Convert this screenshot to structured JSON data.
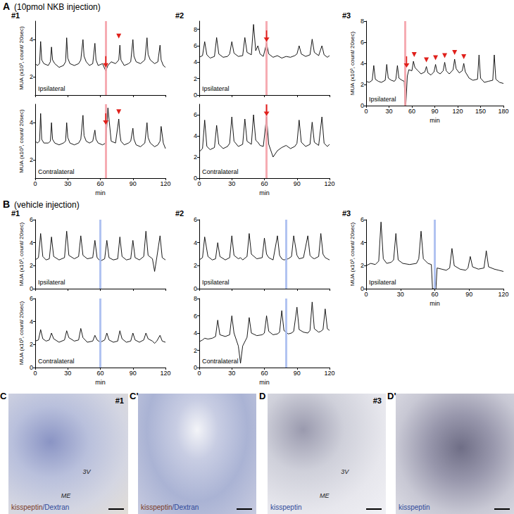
{
  "panels": [
    {
      "letter": "A",
      "caption": "(10pmol NKB injection)",
      "columns": [
        "#1",
        "#2",
        "#3"
      ]
    },
    {
      "letter": "B",
      "caption": "(vehicle injection)",
      "columns": [
        "#1",
        "#2",
        "#3"
      ]
    }
  ],
  "chart_data": [
    {
      "type": "line",
      "annotation": "Ipsilateral",
      "color": "#000000",
      "x": [
        0,
        2,
        4,
        5,
        6,
        8,
        12,
        14,
        15,
        16,
        18,
        22,
        26,
        28,
        29,
        30,
        32,
        36,
        40,
        42,
        44,
        45,
        47,
        50,
        53,
        55,
        56,
        58,
        62,
        65,
        67,
        70,
        74,
        77,
        78,
        79,
        82,
        86,
        88,
        90,
        91,
        93,
        97,
        101,
        103,
        104,
        106,
        110,
        113,
        115,
        116,
        118,
        120
      ],
      "values": [
        2.7,
        2.6,
        2.7,
        3.9,
        2.9,
        2.7,
        2.6,
        2.8,
        3.6,
        2.9,
        2.7,
        2.5,
        2.6,
        2.8,
        4.1,
        3.0,
        2.7,
        2.6,
        2.7,
        2.9,
        4.0,
        3.1,
        2.8,
        2.6,
        2.7,
        3.8,
        2.9,
        2.6,
        2.7,
        2.3,
        2.6,
        2.8,
        2.7,
        2.9,
        3.7,
        2.9,
        2.6,
        2.7,
        2.8,
        4.0,
        3.1,
        2.8,
        2.7,
        2.9,
        4.1,
        3.2,
        2.9,
        2.7,
        2.8,
        3.7,
        2.9,
        2.6,
        2.5
      ],
      "xlim": [
        0,
        120
      ],
      "xticks": [
        0,
        30,
        60,
        90,
        120
      ],
      "ylim": [
        1,
        5
      ],
      "yticks": [
        2,
        4
      ],
      "ylabel": "MUA (x10³, count/ 20sec)",
      "tick_labels": "y",
      "injection": {
        "x": 65,
        "color": "#f5a3ab"
      },
      "arrow": [
        65,
        2.5
      ],
      "arrowheads": [
        [
          77,
          4.0
        ]
      ]
    },
    {
      "type": "line",
      "annotation": "Contralateral",
      "color": "#000000",
      "x": [
        0,
        2,
        4,
        5,
        6,
        8,
        12,
        14,
        15,
        16,
        18,
        22,
        26,
        28,
        29,
        30,
        32,
        36,
        40,
        42,
        44,
        45,
        47,
        50,
        53,
        55,
        56,
        58,
        62,
        65,
        67,
        70,
        74,
        77,
        78,
        79,
        82,
        86,
        88,
        90,
        91,
        93,
        97,
        101,
        103,
        104,
        106,
        110,
        113,
        115,
        116,
        118,
        120
      ],
      "values": [
        3.0,
        2.9,
        3.0,
        4.5,
        3.1,
        2.9,
        2.9,
        3.0,
        4.0,
        3.1,
        2.9,
        2.8,
        2.9,
        3.0,
        4.0,
        3.2,
        2.9,
        2.8,
        2.9,
        3.1,
        4.4,
        3.3,
        3.0,
        2.9,
        3.0,
        3.6,
        3.1,
        2.9,
        2.8,
        2.9,
        4.8,
        3.0,
        2.9,
        4.2,
        3.4,
        3.0,
        2.8,
        2.9,
        3.0,
        3.7,
        3.1,
        2.8,
        2.7,
        2.9,
        4.0,
        3.2,
        2.9,
        2.7,
        2.8,
        3.0,
        3.8,
        2.9,
        2.6
      ],
      "xlim": [
        0,
        120
      ],
      "xticks": [
        0,
        30,
        60,
        90,
        120
      ],
      "ylim": [
        1,
        5
      ],
      "yticks": [
        2,
        4
      ],
      "xlabel": "min",
      "ylabel": "MUA (x10³, count/ 20sec)",
      "injection": {
        "x": 65,
        "color": "#f5a3ab"
      },
      "arrow": [
        65,
        3.9
      ],
      "arrowheads": [
        [
          77,
          4.4
        ]
      ]
    },
    {
      "type": "line",
      "annotation": "Ipsilateral",
      "color": "#000000",
      "x": [
        0,
        3,
        5,
        7,
        10,
        14,
        16,
        18,
        22,
        26,
        28,
        30,
        32,
        36,
        40,
        42,
        44,
        48,
        50,
        52,
        54,
        56,
        59,
        62,
        64,
        68,
        72,
        76,
        80,
        84,
        88,
        90,
        92,
        94,
        98,
        102,
        104,
        106,
        110,
        113,
        115,
        118,
        120
      ],
      "values": [
        4.6,
        4.8,
        6.5,
        4.9,
        4.5,
        4.7,
        7.0,
        5.0,
        4.6,
        4.7,
        5.0,
        6.5,
        5.1,
        4.7,
        4.8,
        7.0,
        5.2,
        4.9,
        8.6,
        5.4,
        6.0,
        5.0,
        4.7,
        6.3,
        5.0,
        4.6,
        4.8,
        4.5,
        4.7,
        4.6,
        4.8,
        5.0,
        6.0,
        5.0,
        4.7,
        4.9,
        6.8,
        5.2,
        4.8,
        6.0,
        4.9,
        4.6,
        4.8
      ],
      "xlim": [
        0,
        120
      ],
      "xticks": [
        0,
        30,
        60,
        90,
        120
      ],
      "ylim": [
        0,
        9
      ],
      "yticks": [
        0,
        2,
        4,
        6,
        8
      ],
      "tick_labels": "y",
      "injection": {
        "x": 62,
        "color": "#f5a3ab"
      },
      "arrow": [
        62,
        6.5
      ]
    },
    {
      "type": "line",
      "annotation": "Contralateral",
      "color": "#000000",
      "x": [
        0,
        3,
        5,
        7,
        10,
        14,
        16,
        18,
        22,
        26,
        28,
        30,
        32,
        36,
        40,
        42,
        44,
        48,
        50,
        52,
        54,
        56,
        59,
        62,
        64,
        68,
        72,
        76,
        80,
        84,
        88,
        90,
        92,
        94,
        98,
        102,
        104,
        106,
        110,
        113,
        115,
        118,
        120
      ],
      "values": [
        2.5,
        2.8,
        5.5,
        3.0,
        2.7,
        2.9,
        5.0,
        3.2,
        2.8,
        3.0,
        3.3,
        5.8,
        3.5,
        3.0,
        3.2,
        5.6,
        3.5,
        3.2,
        6.0,
        3.6,
        3.4,
        3.1,
        3.0,
        5.8,
        3.2,
        2.0,
        2.6,
        2.9,
        3.1,
        2.8,
        3.0,
        3.3,
        5.5,
        3.4,
        3.0,
        3.2,
        5.3,
        3.4,
        3.1,
        5.8,
        3.3,
        3.0,
        3.2
      ],
      "xlim": [
        0,
        120
      ],
      "xticks": [
        0,
        30,
        60,
        90,
        120
      ],
      "ylim": [
        0,
        7
      ],
      "yticks": [
        0,
        2,
        4,
        6
      ],
      "xlabel": "min",
      "injection": {
        "x": 62,
        "color": "#f5a3ab"
      },
      "arrow": [
        62,
        5.9
      ]
    },
    {
      "type": "line",
      "annotation": "Ipsilateral",
      "color": "#000000",
      "x": [
        0,
        4,
        8,
        10,
        12,
        16,
        20,
        25,
        27,
        29,
        33,
        37,
        39,
        41,
        43,
        47,
        50,
        51,
        52,
        54,
        56,
        60,
        62,
        64,
        68,
        72,
        77,
        79,
        81,
        85,
        89,
        91,
        93,
        97,
        101,
        103,
        105,
        109,
        114,
        116,
        118,
        122,
        126,
        128,
        130,
        135,
        140,
        146,
        148,
        150,
        155,
        160,
        166,
        168,
        170,
        175,
        180
      ],
      "values": [
        2.3,
        2.2,
        2.4,
        3.8,
        2.5,
        2.3,
        2.2,
        2.4,
        3.9,
        2.6,
        2.4,
        2.3,
        2.5,
        3.8,
        2.6,
        2.4,
        2.3,
        0,
        0,
        2.8,
        3.4,
        3.3,
        4.2,
        3.6,
        3.3,
        3.0,
        3.2,
        3.7,
        3.1,
        2.9,
        3.2,
        3.9,
        3.2,
        3.0,
        3.3,
        4.1,
        3.3,
        3.0,
        3.4,
        4.4,
        3.5,
        3.1,
        3.3,
        4.0,
        3.2,
        2.6,
        2.4,
        2.5,
        4.8,
        2.6,
        2.2,
        2.3,
        2.4,
        4.8,
        2.5,
        2.2,
        2.1
      ],
      "xlim": [
        0,
        180
      ],
      "xticks": [
        0,
        30,
        60,
        90,
        120,
        150,
        180
      ],
      "ylim": [
        0,
        8
      ],
      "yticks": [
        0,
        2,
        4,
        6,
        8
      ],
      "xlabel": "min",
      "ylabel": "MUA (x10³, count/ 20sec)",
      "injection": {
        "x": 51,
        "color": "#f5a3ab"
      },
      "arrow": [
        53,
        3.6
      ],
      "arrowheads": [
        [
          63,
          4.5
        ],
        [
          79,
          4.0
        ],
        [
          91,
          4.2
        ],
        [
          103,
          4.4
        ],
        [
          116,
          4.7
        ],
        [
          128,
          4.3
        ]
      ]
    },
    {
      "type": "line",
      "annotation": "Ipsilateral",
      "color": "#000000",
      "x": [
        0,
        3,
        5,
        7,
        10,
        13,
        15,
        17,
        22,
        27,
        29,
        31,
        36,
        40,
        42,
        44,
        48,
        53,
        55,
        57,
        60,
        64,
        66,
        68,
        72,
        76,
        78,
        80,
        84,
        88,
        90,
        92,
        96,
        100,
        102,
        104,
        108,
        110,
        112,
        115,
        117,
        120
      ],
      "values": [
        2.5,
        2.7,
        4.8,
        2.8,
        2.5,
        2.6,
        4.5,
        2.8,
        2.5,
        2.7,
        5.0,
        2.9,
        2.6,
        2.8,
        4.6,
        2.9,
        2.6,
        2.7,
        4.2,
        2.7,
        2.4,
        2.6,
        4.2,
        2.7,
        2.5,
        2.6,
        4.5,
        2.8,
        2.5,
        2.6,
        4.2,
        2.7,
        2.5,
        2.8,
        5.0,
        2.9,
        2.6,
        1.5,
        2.7,
        4.6,
        2.7,
        2.5
      ],
      "xlim": [
        0,
        120
      ],
      "xticks": [
        0,
        30,
        60,
        90,
        120
      ],
      "ylim": [
        0,
        6
      ],
      "yticks": [
        0,
        2,
        4,
        6
      ],
      "ylabel": "MUA (x10³, count/ 20sec)",
      "tick_labels": "y",
      "injection": {
        "x": 60,
        "color": "#a9bdf0"
      }
    },
    {
      "type": "line",
      "annotation": "Contralateral",
      "color": "#000000",
      "x": [
        0,
        3,
        5,
        7,
        10,
        13,
        15,
        17,
        22,
        27,
        29,
        31,
        36,
        40,
        42,
        44,
        48,
        53,
        55,
        57,
        60,
        64,
        66,
        68,
        72,
        76,
        78,
        80,
        84,
        88,
        90,
        92,
        96,
        100,
        102,
        104,
        108,
        110,
        112,
        115,
        117,
        120
      ],
      "values": [
        2.3,
        2.4,
        3.3,
        2.5,
        2.3,
        2.4,
        3.0,
        2.5,
        2.2,
        2.4,
        3.2,
        2.6,
        2.3,
        2.4,
        3.4,
        2.6,
        2.2,
        2.3,
        2.8,
        2.4,
        2.2,
        2.4,
        3.0,
        2.4,
        2.2,
        2.3,
        3.2,
        2.5,
        2.2,
        2.3,
        3.0,
        2.4,
        2.2,
        2.4,
        3.0,
        2.5,
        2.3,
        2.1,
        2.3,
        2.8,
        2.3,
        2.2
      ],
      "xlim": [
        0,
        120
      ],
      "xticks": [
        0,
        30,
        60,
        90,
        120
      ],
      "ylim": [
        0,
        6
      ],
      "yticks": [
        0,
        2,
        4,
        6
      ],
      "xlabel": "min",
      "ylabel": "MUA (x10³, count/ 20sec)",
      "injection": {
        "x": 60,
        "color": "#a9bdf0"
      }
    },
    {
      "type": "line",
      "annotation": "Ipsilateral",
      "color": "#000000",
      "x": [
        0,
        3,
        5,
        8,
        12,
        15,
        17,
        19,
        24,
        28,
        30,
        32,
        36,
        38,
        40,
        44,
        46,
        48,
        53,
        58,
        60,
        62,
        64,
        68,
        72,
        74,
        76,
        78,
        82,
        85,
        87,
        90,
        92,
        96,
        100,
        102,
        104,
        106,
        110,
        112,
        114,
        116,
        118,
        120
      ],
      "values": [
        2.5,
        2.7,
        4.5,
        2.8,
        2.5,
        2.6,
        4.0,
        2.8,
        2.5,
        2.7,
        4.6,
        2.9,
        2.6,
        2.7,
        2.5,
        2.8,
        4.8,
        3.0,
        2.6,
        2.7,
        4.4,
        3.0,
        2.7,
        2.5,
        4.6,
        2.9,
        2.6,
        2.5,
        2.6,
        2.8,
        4.6,
        2.9,
        2.6,
        2.7,
        4.6,
        2.9,
        2.7,
        2.6,
        2.8,
        4.8,
        3.0,
        2.7,
        2.6,
        2.5
      ],
      "xlim": [
        0,
        120
      ],
      "xticks": [
        0,
        30,
        60,
        90,
        120
      ],
      "ylim": [
        0,
        6
      ],
      "yticks": [
        0,
        2,
        4,
        6
      ],
      "tick_labels": "y",
      "injection": {
        "x": 80,
        "color": "#a9bdf0"
      }
    },
    {
      "type": "line",
      "annotation": "Contralateral",
      "color": "#000000",
      "x": [
        0,
        3,
        5,
        8,
        12,
        15,
        17,
        19,
        24,
        28,
        30,
        32,
        36,
        38,
        40,
        44,
        46,
        48,
        53,
        58,
        60,
        62,
        64,
        68,
        72,
        74,
        76,
        78,
        82,
        85,
        87,
        90,
        92,
        96,
        100,
        102,
        104,
        106,
        110,
        112,
        114,
        116,
        118,
        120
      ],
      "values": [
        3.0,
        3.2,
        3.4,
        3.3,
        3.4,
        3.6,
        5.5,
        3.8,
        3.6,
        3.8,
        6.0,
        4.0,
        2.5,
        0.5,
        2.5,
        3.5,
        5.8,
        4.0,
        3.7,
        3.8,
        4.0,
        6.0,
        4.2,
        3.8,
        3.9,
        4.1,
        6.6,
        4.3,
        3.9,
        4.0,
        4.2,
        7.0,
        4.4,
        4.1,
        4.0,
        4.3,
        7.6,
        4.5,
        4.1,
        4.2,
        4.4,
        6.8,
        4.5,
        4.3
      ],
      "xlim": [
        0,
        120
      ],
      "xticks": [
        0,
        30,
        60,
        90,
        120
      ],
      "ylim": [
        0,
        8
      ],
      "yticks": [
        0,
        2,
        4,
        6,
        8
      ],
      "xlabel": "min",
      "injection": {
        "x": 80,
        "color": "#a9bdf0"
      }
    },
    {
      "type": "line",
      "annotation": "Ipsilateral",
      "color": "#000000",
      "x": [
        0,
        4,
        8,
        11,
        13,
        15,
        18,
        22,
        24,
        26,
        28,
        32,
        38,
        44,
        46,
        48,
        50,
        54,
        57,
        58,
        61,
        62,
        66,
        70,
        73,
        75,
        77,
        82,
        87,
        89,
        91,
        93,
        98,
        103,
        105,
        107,
        112,
        116,
        120
      ],
      "values": [
        2.0,
        2.2,
        2.1,
        2.4,
        5.8,
        2.6,
        2.2,
        2.3,
        2.5,
        4.8,
        2.5,
        2.2,
        2.1,
        2.2,
        2.6,
        5.0,
        2.6,
        2.2,
        2.1,
        0,
        0,
        1.8,
        1.7,
        1.6,
        1.8,
        3.5,
        2.0,
        1.7,
        1.6,
        1.8,
        2.8,
        1.9,
        1.7,
        1.8,
        3.3,
        1.9,
        1.7,
        1.6,
        1.5
      ],
      "xlim": [
        0,
        120
      ],
      "xticks": [
        0,
        30,
        60,
        90,
        120
      ],
      "ylim": [
        0,
        6
      ],
      "yticks": [
        0,
        2,
        4,
        6
      ],
      "xlabel": "min",
      "ylabel": "MUA (x10³, count/ 20sec)",
      "injection": {
        "x": 60,
        "color": "#a9bdf0"
      }
    }
  ],
  "images": [
    {
      "letter": "C",
      "animal": "#1",
      "stain": [
        {
          "text": "kisspeptin",
          "color": "#7a3a26"
        },
        {
          "text": "/Dextran",
          "color": "#2f4a9a"
        }
      ],
      "labels": [
        "3V",
        "ME"
      ]
    },
    {
      "letter": "C'",
      "stain": [
        {
          "text": "kisspeptin",
          "color": "#7a3a26"
        },
        {
          "text": "/Dextran",
          "color": "#2f4a9a"
        }
      ]
    },
    {
      "letter": "D",
      "animal": "#3",
      "stain": [
        {
          "text": "kisspeptin",
          "color": "#2f4a9a"
        }
      ],
      "labels": [
        "3V",
        "ME"
      ]
    },
    {
      "letter": "D'",
      "stain": [
        {
          "text": "kisspeptin",
          "color": "#2f4a9a"
        }
      ]
    }
  ]
}
